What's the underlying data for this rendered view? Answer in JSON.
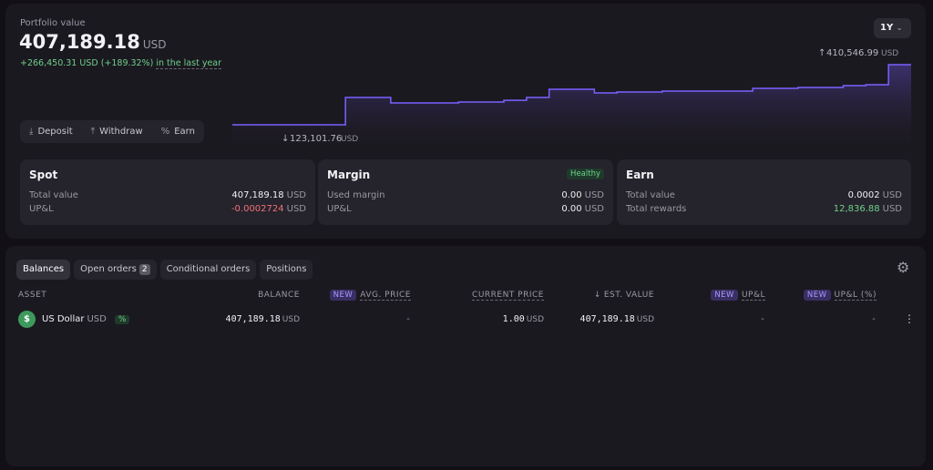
{
  "header": {
    "label": "Portfolio value",
    "value": "407,189.18",
    "currency": "USD",
    "change": "+266,450.31 USD (+189.32%)",
    "period": "in the last year",
    "range": "1Y"
  },
  "chart": {
    "max_label": "410,546.99",
    "min_label": "123,101.76",
    "max_unit": "USD",
    "min_unit": "USD",
    "values": [
      123101.76,
      123101.76,
      123101.76,
      123101.76,
      123101.76,
      253600,
      253600,
      227500,
      227500,
      227500,
      231800,
      231800,
      240000,
      253600,
      292700,
      292700,
      275300,
      279700,
      279700,
      284000,
      284000,
      284000,
      284000,
      297100,
      297100,
      301400,
      301400,
      310200,
      314500,
      410546.99,
      410546.99
    ]
  },
  "actions": [
    "Deposit",
    "Withdraw",
    "Earn"
  ],
  "cards": [
    {
      "title": "Spot",
      "rows": [
        {
          "label": "Total value",
          "value": "407,189.18",
          "unit": "USD"
        },
        {
          "label": "UP&L",
          "value": "-0.0002724",
          "unit": "USD"
        }
      ]
    },
    {
      "title": "Margin",
      "badge": "Healthy",
      "rows": [
        {
          "label": "Used margin",
          "value": "0.00",
          "unit": "USD"
        },
        {
          "label": "UP&L",
          "value": "0.00",
          "unit": "USD"
        }
      ]
    },
    {
      "title": "Earn",
      "rows": [
        {
          "label": "Total value",
          "value": "0.0002",
          "unit": "USD"
        },
        {
          "label": "Total rewards",
          "value": "12,836.88",
          "unit": "USD"
        }
      ]
    }
  ],
  "tabs": [
    {
      "label": "Balances"
    },
    {
      "label": "Open orders",
      "count": "2"
    },
    {
      "label": "Conditional orders"
    },
    {
      "label": "Positions"
    }
  ],
  "table": {
    "new_badge": "NEW",
    "columns": [
      "ASSET",
      "BALANCE",
      "AVG. PRICE",
      "CURRENT PRICE",
      "EST. VALUE",
      "UP&L",
      "UP&L (%)"
    ],
    "rows": [
      {
        "name": "US Dollar",
        "code": "USD",
        "tag": "%",
        "balance": "407,189.18",
        "balance_unit": "USD",
        "avg_price": "-",
        "price": "1.00",
        "price_unit": "USD",
        "est_value": "407,189.18",
        "est_unit": "USD",
        "upl": "-",
        "upl_pct": "-"
      }
    ]
  }
}
